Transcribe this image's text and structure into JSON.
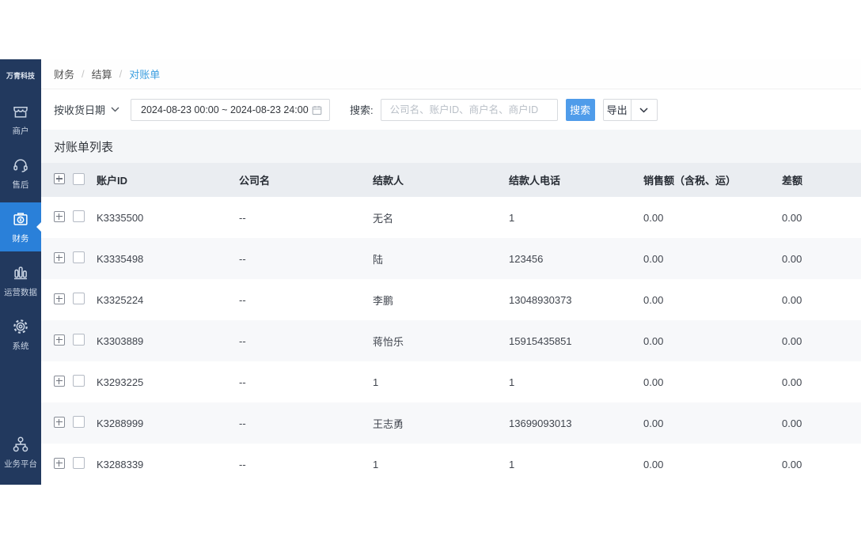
{
  "colors": {
    "sidebar_bg": "#22395e",
    "sidebar_active_bg": "#2a80d9",
    "breadcrumb_active_blue": "#3d9fe0",
    "search_button_bg": "#4f9cea",
    "table_header_bg": "#eaedf1",
    "row_stripe_bg": "#f7f8fa",
    "title_band_bg": "#f4f6f8"
  },
  "brand": "万青科技",
  "sidebar": {
    "items": [
      {
        "label": "商户",
        "icon": "storefront-icon",
        "active": false
      },
      {
        "label": "售后",
        "icon": "headset-icon",
        "active": false
      },
      {
        "label": "财务",
        "icon": "cashbox-icon",
        "active": true
      },
      {
        "label": "运营数据",
        "icon": "bar-chart-icon",
        "active": false
      },
      {
        "label": "系统",
        "icon": "gear-icon",
        "active": false
      }
    ],
    "bottom_item": {
      "label": "业务平台",
      "icon": "org-icon"
    }
  },
  "breadcrumb": {
    "items": [
      "财务",
      "结算",
      "对账单"
    ],
    "separator": "/"
  },
  "filters": {
    "date_type_label": "按收货日期",
    "date_range_value": "2024-08-23 00:00 ~ 2024-08-23 24:00",
    "search_label": "搜索:",
    "search_placeholder": "公司名、账户ID、商户名、商户ID",
    "search_button_label": "搜索",
    "export_button_label": "导出"
  },
  "table": {
    "title": "对账单列表",
    "columns": [
      "账户ID",
      "公司名",
      "结款人",
      "结款人电话",
      "销售额（含税、运）",
      "差额"
    ],
    "column_keys": [
      "account-id",
      "company-name",
      "payee",
      "payee-phone",
      "sales-amount",
      "difference"
    ],
    "rows": [
      [
        "K3335500",
        "--",
        "无名",
        "1",
        "0.00",
        "0.00"
      ],
      [
        "K3335498",
        "--",
        "陆",
        "123456",
        "0.00",
        "0.00"
      ],
      [
        "K3325224",
        "--",
        "李鹏",
        "13048930373",
        "0.00",
        "0.00"
      ],
      [
        "K3303889",
        "--",
        "蒋怡乐",
        "15915435851",
        "0.00",
        "0.00"
      ],
      [
        "K3293225",
        "--",
        "1",
        "1",
        "0.00",
        "0.00"
      ],
      [
        "K3288999",
        "--",
        "王志勇",
        "13699093013",
        "0.00",
        "0.00"
      ],
      [
        "K3288339",
        "--",
        "1",
        "1",
        "0.00",
        "0.00"
      ]
    ]
  }
}
